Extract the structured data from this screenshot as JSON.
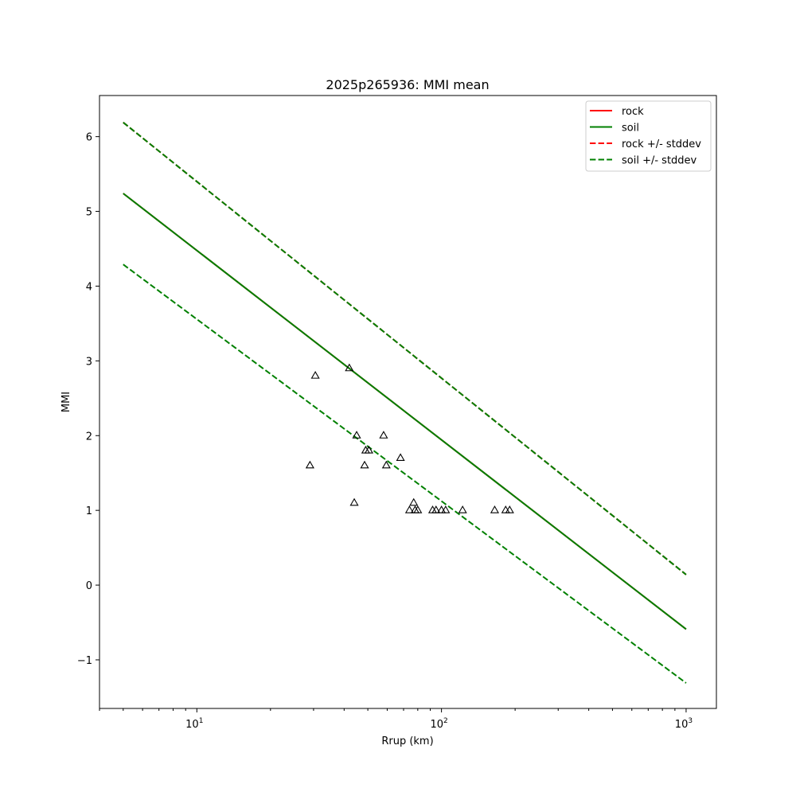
{
  "chart_data": {
    "type": "line",
    "title": "2025p265936: MMI mean",
    "xlabel": "Rrup (km)",
    "ylabel": "MMI",
    "xscale": "log",
    "xlim": [
      4.0,
      1330
    ],
    "ylim": [
      -1.65,
      6.55
    ],
    "yticks": [
      -1,
      0,
      1,
      2,
      3,
      4,
      5,
      6
    ],
    "ytick_labels": [
      "−1",
      "0",
      "1",
      "2",
      "3",
      "4",
      "5",
      "6"
    ],
    "xticks": [
      10,
      100,
      1000
    ],
    "xtick_labels": [
      {
        "base": "10",
        "exp": "1"
      },
      {
        "base": "10",
        "exp": "2"
      },
      {
        "base": "10",
        "exp": "3"
      }
    ],
    "grid": false,
    "legend_position": "top-right",
    "series": [
      {
        "name": "rock",
        "style": "solid",
        "color": "#ff0000",
        "x": [
          5,
          1000
        ],
        "y": [
          5.24,
          -0.59
        ]
      },
      {
        "name": "soil",
        "style": "solid",
        "color": "#008000",
        "x": [
          5,
          1000
        ],
        "y": [
          5.24,
          -0.59
        ]
      },
      {
        "name": "rock +/- stddev",
        "style": "dashed",
        "color": "#ff0000",
        "x": [
          5,
          1000
        ],
        "y": [
          6.19,
          0.14
        ]
      },
      {
        "name": "soil +/- stddev",
        "style": "dashed",
        "color": "#008000",
        "x": [
          5,
          1000
        ],
        "y": [
          6.19,
          0.14
        ]
      },
      {
        "name": "",
        "style": "dashed",
        "color": "#008000",
        "legend": false,
        "x": [
          5,
          1000
        ],
        "y": [
          4.29,
          -1.31
        ]
      }
    ],
    "observations": {
      "marker": "triangle",
      "color": "#000000",
      "points": [
        [
          29,
          1.6
        ],
        [
          30.5,
          2.8
        ],
        [
          42,
          2.9
        ],
        [
          44,
          1.1
        ],
        [
          45,
          2.0
        ],
        [
          48.5,
          1.6
        ],
        [
          49,
          1.8
        ],
        [
          50.5,
          1.8
        ],
        [
          58,
          2.0
        ],
        [
          59.5,
          1.6
        ],
        [
          68,
          1.7
        ],
        [
          74,
          1.0
        ],
        [
          77,
          1.1
        ],
        [
          78,
          1.0
        ],
        [
          80,
          1.0
        ],
        [
          92,
          1.0
        ],
        [
          95,
          1.0
        ],
        [
          100,
          1.0
        ],
        [
          104,
          1.0
        ],
        [
          122,
          1.0
        ],
        [
          165,
          1.0
        ],
        [
          183,
          1.0
        ],
        [
          190,
          1.0
        ]
      ]
    }
  }
}
